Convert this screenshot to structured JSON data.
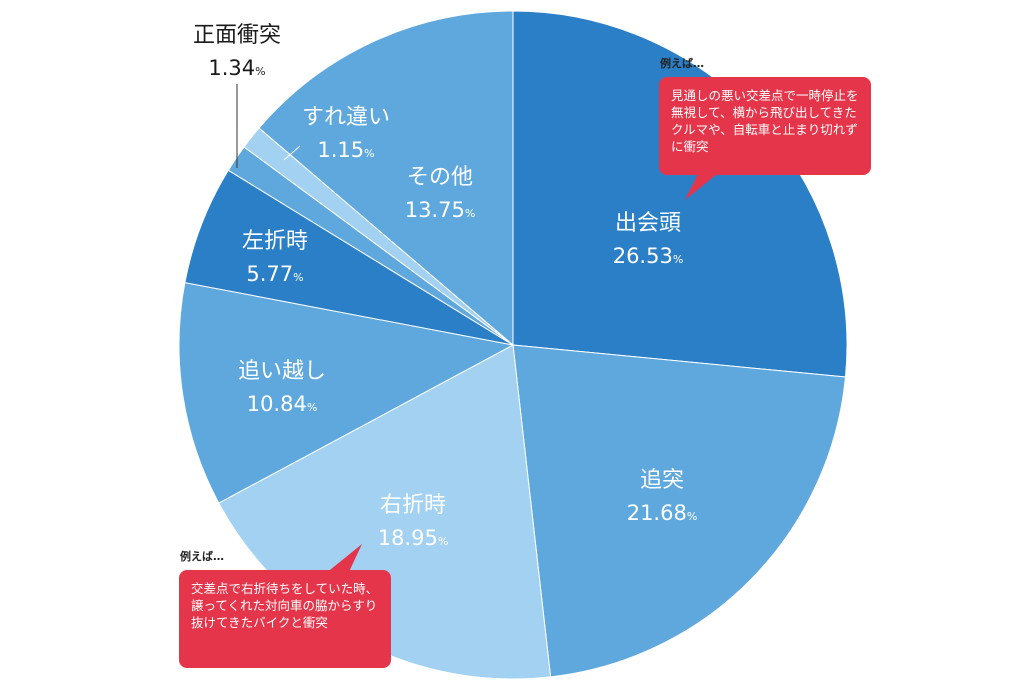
{
  "chart_data": {
    "type": "pie",
    "unit": "%",
    "slices": [
      {
        "label": "出会頭",
        "value": 26.53,
        "value_text": "26.53",
        "color": "#2a7fc7"
      },
      {
        "label": "追突",
        "value": 21.68,
        "value_text": "21.68",
        "color": "#5fa8de"
      },
      {
        "label": "右折時",
        "value": 18.95,
        "value_text": "18.95",
        "color": "#a3d1f2"
      },
      {
        "label": "追い越し",
        "value": 10.84,
        "value_text": "10.84",
        "color": "#5fa8de"
      },
      {
        "label": "左折時",
        "value": 5.77,
        "value_text": "5.77",
        "color": "#2a7fc7"
      },
      {
        "label": "正面衝突",
        "value": 1.34,
        "value_text": "1.34",
        "color": "#5fa8de"
      },
      {
        "label": "すれ違い",
        "value": 1.15,
        "value_text": "1.15",
        "color": "#a3d1f2"
      },
      {
        "label": "その他",
        "value": 13.75,
        "value_text": "13.75",
        "color": "#5fa8de"
      }
    ]
  },
  "callouts": [
    {
      "heading": "例えば…",
      "text": "見通しの悪い交差点で一時停止を無視して、横から飛び出してきたクルマや、自転車と止まり切れずに衝突"
    },
    {
      "heading": "例えば…",
      "text": "交差点で右折待ちをしていた時、譲ってくれた対向車の脇からすり抜けてきたバイクと衝突"
    }
  ],
  "colors": {
    "callout": "#e5354a"
  }
}
